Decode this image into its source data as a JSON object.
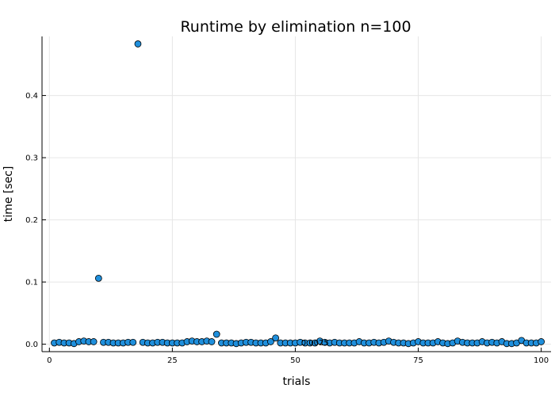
{
  "chart_data": {
    "type": "scatter",
    "title": "Runtime by elimination  n=100",
    "xlabel": "trials",
    "ylabel": "time [sec]",
    "xlim": [
      -1.5,
      102
    ],
    "ylim": [
      -0.012,
      0.495
    ],
    "xticks": [
      0,
      25,
      50,
      75,
      100
    ],
    "xtick_labels": [
      "0",
      "25",
      "50",
      "75",
      "100"
    ],
    "yticks": [
      0.0,
      0.1,
      0.2,
      0.3,
      0.4
    ],
    "ytick_labels": [
      "0.0",
      "0.1",
      "0.2",
      "0.3",
      "0.4"
    ],
    "grid": true,
    "legend": false,
    "marker_color": "#1f8fdc",
    "annotation": {
      "text": "0.0025",
      "x": 54,
      "y": 0.0025
    },
    "series": [
      {
        "x": [
          1,
          2,
          3,
          4,
          5,
          6,
          7,
          8,
          9,
          10,
          11,
          12,
          13,
          14,
          15,
          16,
          17,
          18,
          19,
          20,
          21,
          22,
          23,
          24,
          25,
          26,
          27,
          28,
          29,
          30,
          31,
          32,
          33,
          34,
          35,
          36,
          37,
          38,
          39,
          40,
          41,
          42,
          43,
          44,
          45,
          46,
          47,
          48,
          49,
          50,
          51,
          52,
          53,
          54,
          55,
          56,
          57,
          58,
          59,
          60,
          61,
          62,
          63,
          64,
          65,
          66,
          67,
          68,
          69,
          70,
          71,
          72,
          73,
          74,
          75,
          76,
          77,
          78,
          79,
          80,
          81,
          82,
          83,
          84,
          85,
          86,
          87,
          88,
          89,
          90,
          91,
          92,
          93,
          94,
          95,
          96,
          97,
          98,
          99,
          100
        ],
        "values": [
          0.002,
          0.003,
          0.002,
          0.002,
          0.001,
          0.004,
          0.005,
          0.004,
          0.004,
          0.106,
          0.003,
          0.003,
          0.002,
          0.002,
          0.002,
          0.003,
          0.003,
          0.483,
          0.003,
          0.002,
          0.002,
          0.003,
          0.003,
          0.002,
          0.002,
          0.002,
          0.002,
          0.004,
          0.005,
          0.004,
          0.004,
          0.005,
          0.004,
          0.016,
          0.002,
          0.002,
          0.002,
          0.001,
          0.002,
          0.003,
          0.003,
          0.002,
          0.002,
          0.002,
          0.004,
          0.01,
          0.002,
          0.002,
          0.002,
          0.002,
          0.003,
          0.002,
          0.002,
          0.002,
          0.005,
          0.003,
          0.002,
          0.003,
          0.002,
          0.002,
          0.002,
          0.002,
          0.004,
          0.002,
          0.002,
          0.003,
          0.002,
          0.003,
          0.005,
          0.003,
          0.002,
          0.002,
          0.001,
          0.002,
          0.004,
          0.002,
          0.002,
          0.002,
          0.004,
          0.002,
          0.001,
          0.002,
          0.005,
          0.003,
          0.002,
          0.002,
          0.002,
          0.004,
          0.002,
          0.003,
          0.002,
          0.004,
          0.001,
          0.001,
          0.002,
          0.006,
          0.002,
          0.002,
          0.002,
          0.004
        ]
      }
    ]
  }
}
